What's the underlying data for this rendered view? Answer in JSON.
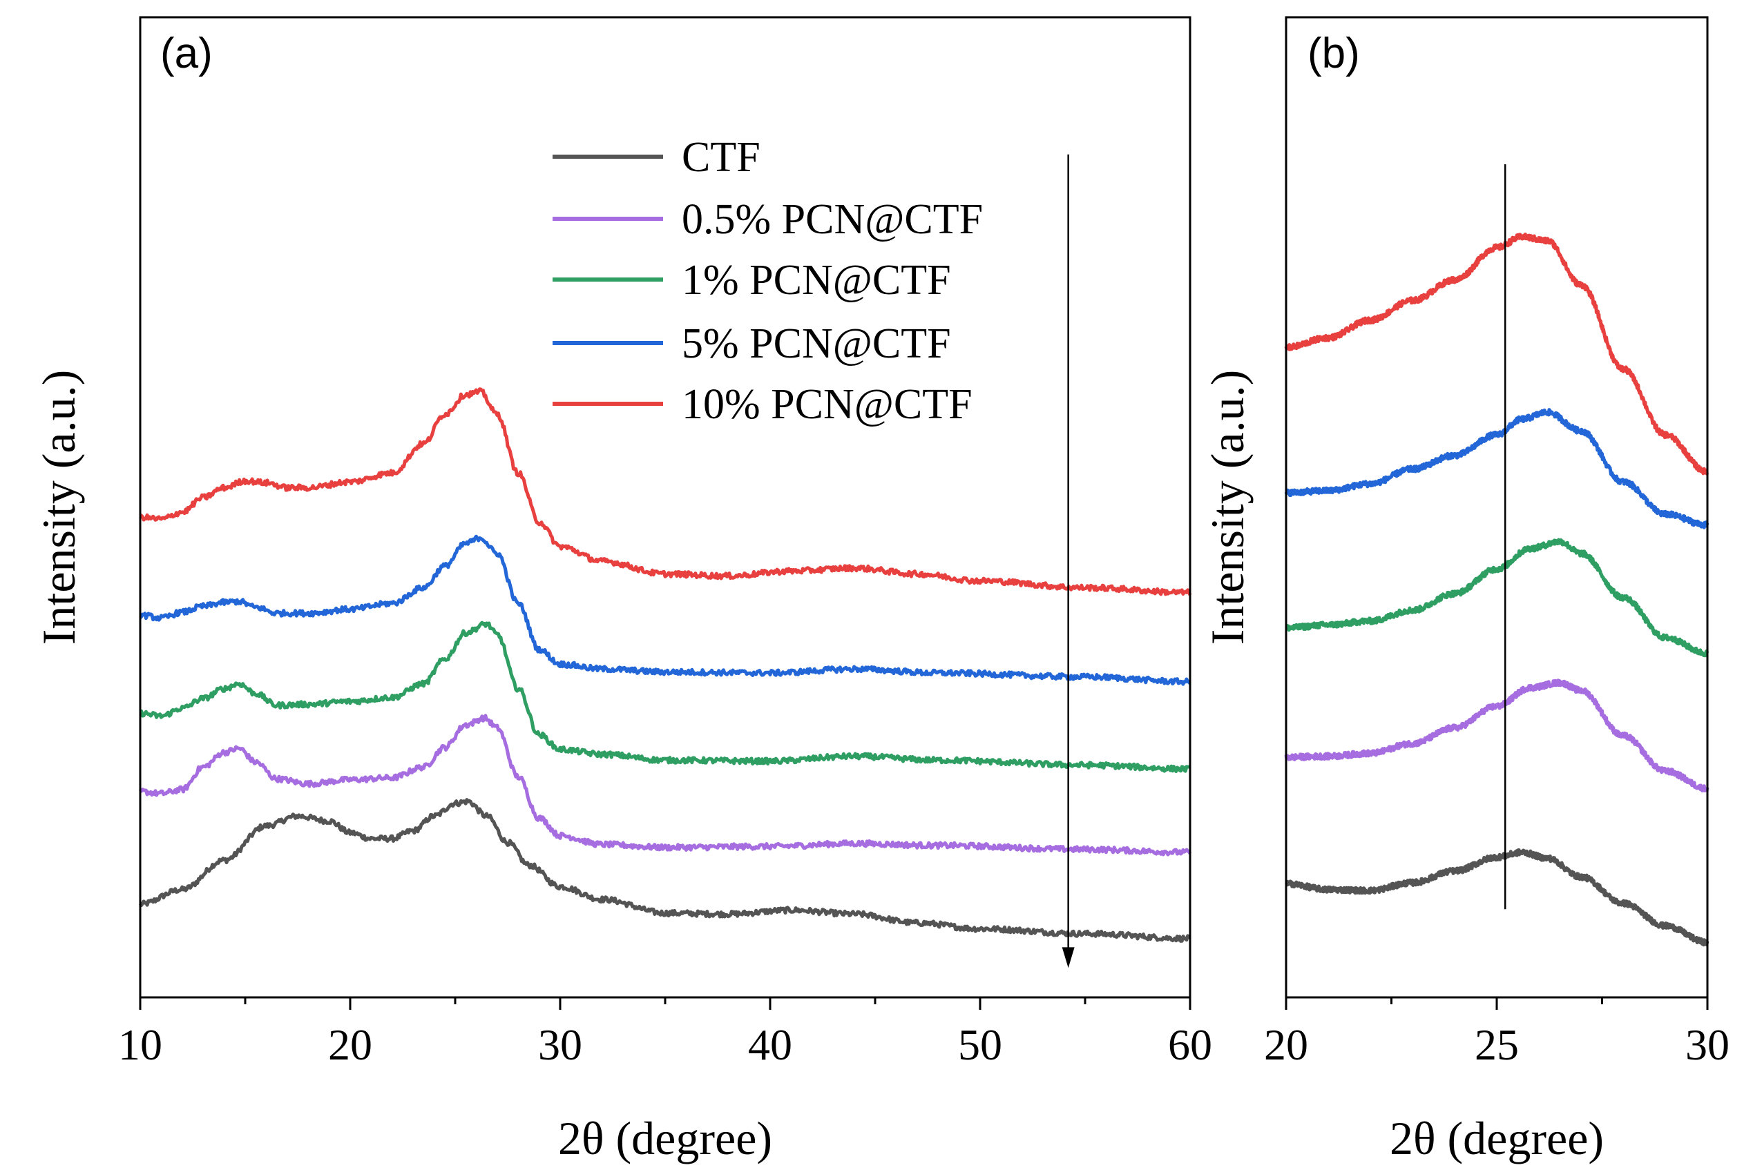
{
  "legend": [
    {
      "label": "CTF",
      "color": "#545454"
    },
    {
      "label": "0.5% PCN@CTF",
      "color": "#a66de0"
    },
    {
      "label": "1% PCN@CTF",
      "color": "#2f9e62"
    },
    {
      "label": "5% PCN@CTF",
      "color": "#2266d8"
    },
    {
      "label": "10% PCN@CTF",
      "color": "#e8403f"
    }
  ],
  "chart_data": [
    {
      "type": "line",
      "panel_label": "(a)",
      "xlabel": "2θ (degree)",
      "ylabel": "Intensity (a.u.)",
      "xlim": [
        10,
        60
      ],
      "ylim": [
        0,
        100
      ],
      "xticks": [
        "10",
        "20",
        "30",
        "40",
        "50",
        "60"
      ],
      "xtick_values": [
        10,
        20,
        30,
        40,
        50,
        60
      ],
      "arrow": {
        "x": 54.2,
        "y_from": 86,
        "y_to": 3,
        "note": "downward arrow"
      },
      "series": [
        {
          "name": "CTF",
          "color": "#545454",
          "x": [
            10,
            12,
            14,
            16,
            17.5,
            19,
            20,
            21,
            22,
            23,
            24,
            25,
            25.6,
            26.5,
            27.5,
            28.5,
            30,
            32,
            35,
            38,
            41,
            44,
            47,
            50,
            55,
            60
          ],
          "y": [
            9.5,
            11,
            14,
            17.5,
            18.5,
            18,
            16.8,
            16.2,
            16.2,
            17,
            18.5,
            19.8,
            20,
            18.5,
            15.8,
            13.5,
            11.3,
            10,
            8.6,
            8.5,
            8.9,
            8.5,
            7.6,
            7,
            6.5,
            6
          ]
        },
        {
          "name": "0.5% PCN@CTF",
          "color": "#a66de0",
          "x": [
            10,
            11,
            12,
            13,
            14,
            14.7,
            15.5,
            16.5,
            18,
            20,
            22,
            23.5,
            24.5,
            25.5,
            26.4,
            27,
            28,
            29,
            30,
            32,
            35,
            40,
            44,
            48,
            55,
            60
          ],
          "y": [
            21,
            20.8,
            21.2,
            23.5,
            25,
            25.4,
            24,
            22.3,
            21.8,
            22.2,
            22.4,
            23.5,
            25.5,
            27.8,
            28.5,
            27.5,
            22.5,
            18.3,
            16.5,
            15.6,
            15.3,
            15.4,
            15.7,
            15.5,
            15.1,
            14.8
          ]
        },
        {
          "name": "1% PCN@CTF",
          "color": "#2f9e62",
          "x": [
            10,
            11,
            12,
            13,
            14,
            14.7,
            15.5,
            16.5,
            18,
            20,
            22,
            23.5,
            24.5,
            25.5,
            26.5,
            27,
            28,
            29,
            30,
            32,
            35,
            40,
            44,
            48,
            55,
            60
          ],
          "y": [
            29,
            28.7,
            29.5,
            30.5,
            31.5,
            32,
            31,
            29.8,
            29.9,
            30.2,
            30.6,
            32,
            34.5,
            37.2,
            38.1,
            37,
            31.5,
            26.8,
            25.3,
            24.8,
            24.2,
            24.1,
            24.6,
            24.2,
            23.7,
            23.3
          ]
        },
        {
          "name": "5% PCN@CTF",
          "color": "#2266d8",
          "x": [
            10,
            11,
            12,
            13,
            14,
            14.7,
            15.5,
            16.5,
            18,
            20,
            22,
            23.5,
            24.5,
            25.5,
            26.2,
            27,
            28,
            29,
            30,
            32,
            35,
            40,
            44,
            48,
            55,
            60
          ],
          "y": [
            39,
            38.7,
            39.3,
            39.9,
            40.3,
            40.4,
            39.8,
            39.2,
            39.2,
            39.6,
            40.2,
            41.8,
            44,
            46.3,
            46.9,
            45.3,
            40.2,
            35.5,
            34,
            33.5,
            33.2,
            33.1,
            33.5,
            33.1,
            32.7,
            32.2
          ]
        },
        {
          "name": "10% PCN@CTF",
          "color": "#e8403f",
          "x": [
            10,
            11,
            12,
            13,
            14,
            15,
            16,
            17,
            18,
            20,
            22,
            23.5,
            24.5,
            25.5,
            26.2,
            27,
            28,
            29,
            30,
            32,
            35,
            38,
            41,
            44,
            47,
            50,
            55,
            60
          ],
          "y": [
            49,
            48.8,
            49.5,
            51,
            52,
            52.7,
            52.5,
            52,
            52,
            52.6,
            53.5,
            56.5,
            59.5,
            61.5,
            61.8,
            59.5,
            53.5,
            48.5,
            46,
            44.5,
            43.2,
            43,
            43.5,
            43.8,
            43.2,
            42.5,
            41.8,
            41.3
          ]
        }
      ]
    },
    {
      "type": "line",
      "panel_label": "(b)",
      "xlabel": "2θ (degree)",
      "ylabel": "Intensity (a.u.)",
      "xlim": [
        20,
        30
      ],
      "ylim": [
        0,
        100
      ],
      "xticks": [
        "20",
        "25",
        "30"
      ],
      "xtick_values": [
        20,
        25,
        30
      ],
      "vline": {
        "x": 25.2,
        "y_from": 9,
        "y_to": 85
      },
      "series": [
        {
          "name": "CTF",
          "color": "#545454",
          "x": [
            20,
            21,
            22,
            23,
            24,
            25,
            25.6,
            26.2,
            27,
            28,
            29,
            30
          ],
          "y": [
            11.6,
            11,
            10.9,
            11.7,
            12.9,
            14.3,
            14.8,
            14.2,
            12.3,
            9.6,
            7.3,
            5.6
          ]
        },
        {
          "name": "0.5% PCN@CTF",
          "color": "#a66de0",
          "x": [
            20,
            21,
            22,
            23,
            24,
            25,
            25.8,
            26.5,
            27,
            28,
            29,
            30
          ],
          "y": [
            24.5,
            24.6,
            24.9,
            25.9,
            27.5,
            29.7,
            31.6,
            32.1,
            31.3,
            26.7,
            23.1,
            21.3
          ]
        },
        {
          "name": "1% PCN@CTF",
          "color": "#2f9e62",
          "x": [
            20,
            21,
            22,
            23,
            24,
            25,
            25.8,
            26.5,
            27,
            28,
            29,
            30
          ],
          "y": [
            37.7,
            38,
            38.4,
            39.5,
            41.2,
            43.7,
            45.8,
            46.5,
            45.3,
            40.8,
            36.7,
            35.1
          ]
        },
        {
          "name": "5% PCN@CTF",
          "color": "#2266d8",
          "x": [
            20,
            21,
            22,
            23,
            24,
            25,
            25.6,
            26.2,
            27,
            28,
            29,
            30
          ],
          "y": [
            51.5,
            51.7,
            52.4,
            53.9,
            55.3,
            57.4,
            59,
            59.7,
            57.8,
            52.6,
            49.3,
            48.2
          ]
        },
        {
          "name": "10% PCN@CTF",
          "color": "#e8403f",
          "x": [
            20,
            21,
            22,
            23,
            24,
            25,
            25.6,
            26.2,
            27,
            28,
            29,
            30
          ],
          "y": [
            66.3,
            67.3,
            69.1,
            71.1,
            73.2,
            76.5,
            77.6,
            77.2,
            72.7,
            64.1,
            57.4,
            53.6
          ]
        }
      ]
    }
  ]
}
